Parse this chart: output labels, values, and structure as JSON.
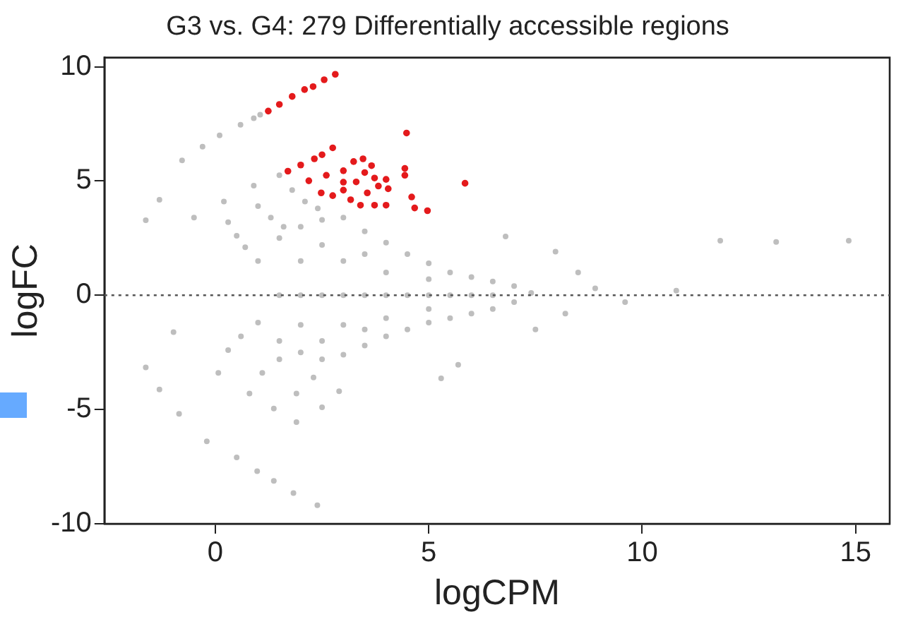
{
  "chart_data": {
    "type": "scatter",
    "title": "G3 vs. G4: 279 Differentially accessible regions",
    "xlabel": "logCPM",
    "ylabel": "logFC",
    "xlim": [
      -2.6,
      15.8
    ],
    "ylim": [
      -10,
      10.4
    ],
    "xticks": [
      0,
      5,
      10,
      15
    ],
    "yticks": [
      -10,
      -5,
      0,
      5,
      10
    ],
    "grid": false,
    "legend": false,
    "marker": "circle",
    "ref_lines": [
      {
        "axis": "y",
        "value": 0,
        "color": "#555555",
        "line_style": "dotted"
      }
    ],
    "series": [
      {
        "color": "#bebebe",
        "x": [
          -0.78,
          -0.3,
          0.1,
          0.59,
          0.9,
          1.05,
          -1.63,
          -1.31,
          -0.5,
          0.2,
          0.9,
          1.5,
          0.3,
          1.0,
          1.8,
          0.5,
          1.3,
          2.1,
          0.7,
          1.6,
          2.4,
          1.0,
          1.5,
          2.0,
          2.5,
          3.0,
          3.5,
          4.0,
          4.5,
          5.0,
          5.5,
          6.0,
          6.5,
          7.0,
          7.4,
          1.0,
          1.5,
          2.0,
          2.5,
          3.0,
          3.5,
          4.0,
          4.5,
          5.0,
          5.5,
          6.0,
          6.5,
          7.0,
          1.5,
          2.0,
          2.5,
          3.0,
          3.5,
          4.0,
          4.5,
          5.0,
          5.5,
          6.0,
          6.5,
          2.0,
          3.0,
          4.0,
          5.0,
          2.0,
          3.0,
          4.0,
          5.0,
          2.5,
          2.5,
          3.5,
          3.5,
          -1.63,
          -1.31,
          -0.85,
          -0.2,
          0.5,
          0.98,
          1.37,
          1.83,
          2.39,
          -0.98,
          0.07,
          0.8,
          1.37,
          1.9,
          0.3,
          1.1,
          1.9,
          2.5,
          0.6,
          1.5,
          2.3,
          2.9,
          6.8,
          7.97,
          8.5,
          9.6,
          10.8,
          11.83,
          13.14,
          14.84,
          7.5,
          8.2,
          5.29,
          5.69,
          8.9
        ],
        "values": [
          5.9,
          6.5,
          7.0,
          7.46,
          7.75,
          7.9,
          3.28,
          4.18,
          3.4,
          4.1,
          4.8,
          5.25,
          3.2,
          3.9,
          4.6,
          2.6,
          3.4,
          4.1,
          2.1,
          3.0,
          3.8,
          1.5,
          2.5,
          3.0,
          3.3,
          3.4,
          2.8,
          2.3,
          1.8,
          1.4,
          1.0,
          0.8,
          0.6,
          0.4,
          0.1,
          -1.2,
          -2.0,
          -2.5,
          -2.8,
          -2.6,
          -2.2,
          -1.8,
          -1.5,
          -1.2,
          -1.0,
          -0.8,
          -0.6,
          -0.3,
          0,
          0,
          0,
          0,
          0,
          0,
          0,
          0,
          0,
          0,
          0,
          1.5,
          1.5,
          1.0,
          0.7,
          -1.3,
          -1.3,
          -1.0,
          -0.6,
          2.2,
          -2.0,
          1.8,
          -1.5,
          -3.16,
          -4.12,
          -5.19,
          -6.39,
          -7.1,
          -7.7,
          -8.12,
          -8.66,
          -9.19,
          -1.61,
          -3.4,
          -4.3,
          -4.96,
          -5.55,
          -2.4,
          -3.4,
          -4.3,
          -4.9,
          -1.8,
          -2.8,
          -3.6,
          -4.2,
          2.57,
          1.91,
          1.0,
          -0.3,
          0.2,
          2.39,
          2.33,
          2.39,
          -1.5,
          -0.8,
          -3.64,
          -3.04,
          0.3
        ]
      },
      {
        "color": "#e41a1c",
        "x": [
          1.24,
          1.5,
          1.8,
          2.09,
          2.29,
          2.55,
          2.81,
          1.7,
          2.0,
          2.32,
          2.5,
          2.75,
          2.19,
          2.6,
          3.0,
          3.66,
          2.48,
          3.0,
          3.5,
          2.75,
          3.0,
          3.3,
          3.24,
          3.46,
          3.73,
          4.0,
          3.82,
          4.05,
          3.56,
          3.73,
          4.0,
          3.4,
          3.17,
          4.48,
          5.85,
          4.44,
          4.44,
          4.6,
          4.67,
          4.97
        ],
        "values": [
          8.06,
          8.35,
          8.7,
          9.0,
          9.13,
          9.43,
          9.67,
          5.43,
          5.7,
          5.97,
          6.15,
          6.45,
          5.01,
          5.25,
          5.45,
          5.67,
          4.48,
          4.95,
          5.37,
          4.36,
          4.6,
          4.96,
          5.85,
          5.97,
          5.13,
          5.07,
          4.78,
          4.66,
          4.48,
          3.94,
          3.94,
          3.94,
          4.18,
          7.1,
          4.9,
          5.55,
          5.25,
          4.3,
          3.82,
          3.7
        ]
      }
    ]
  }
}
